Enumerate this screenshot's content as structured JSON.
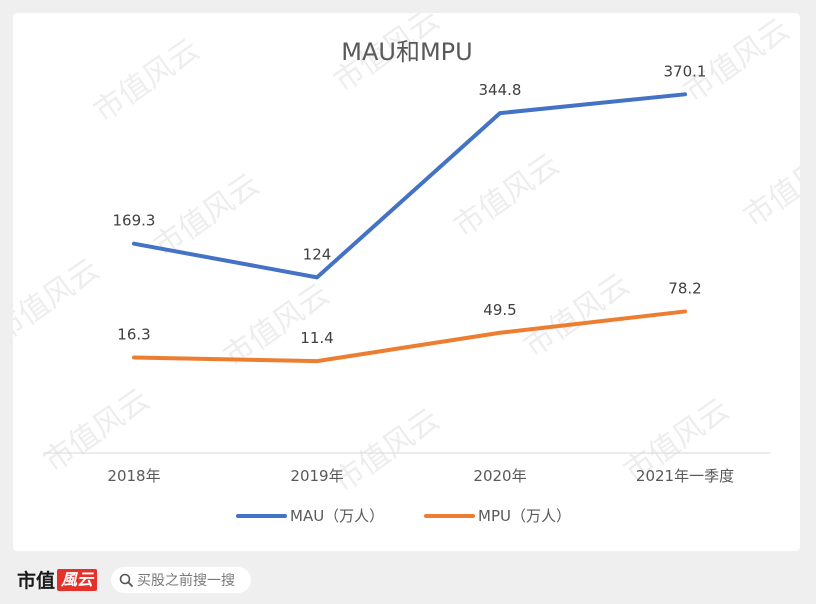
{
  "chart_data": {
    "type": "line",
    "title": "MAU和MPU",
    "categories": [
      "2018年",
      "2019年",
      "2020年",
      "2021年一季度"
    ],
    "series": [
      {
        "name": "MAU（万人）",
        "values": [
          169.3,
          124,
          344.8,
          370.1
        ],
        "labels": [
          "169.3",
          "124",
          "344.8",
          "370.1"
        ],
        "color": "#4472c4"
      },
      {
        "name": "MPU（万人）",
        "values": [
          16.3,
          11.4,
          49.5,
          78.2
        ],
        "labels": [
          "16.3",
          "11.4",
          "49.5",
          "78.2"
        ],
        "color": "#ed7d31"
      }
    ],
    "ylim": [
      0,
      400
    ],
    "grid": false,
    "legend": "bottom"
  },
  "watermark_text": "市值风云",
  "footer": {
    "brand_text": "市值",
    "brand_badge": "風云",
    "search_placeholder": "买股之前搜一搜",
    "search_icon": "search-icon"
  }
}
